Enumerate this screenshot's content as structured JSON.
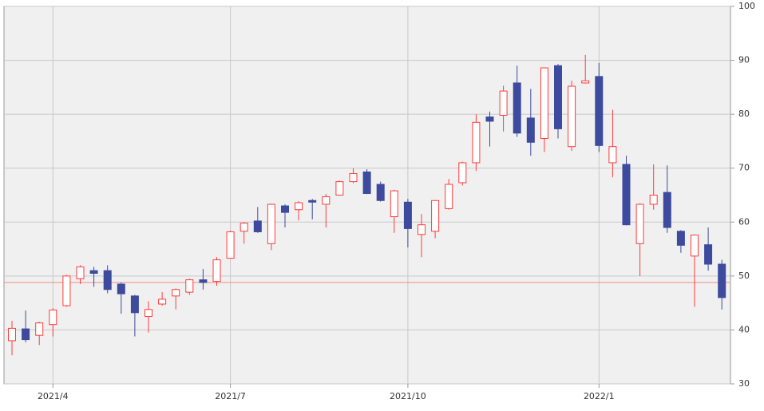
{
  "chart_data": {
    "type": "candlestick",
    "categories": [
      null,
      null,
      null,
      "2021/4",
      null,
      null,
      null,
      null,
      null,
      null,
      null,
      null,
      null,
      null,
      null,
      null,
      "2021/7",
      null,
      null,
      null,
      null,
      null,
      null,
      null,
      null,
      null,
      null,
      null,
      null,
      "2021/10",
      null,
      null,
      null,
      null,
      null,
      null,
      null,
      null,
      null,
      null,
      null,
      null,
      null,
      "2022/1",
      null,
      null,
      null,
      null,
      null,
      null,
      null,
      null,
      null
    ],
    "open": [
      38,
      40.2,
      39,
      41,
      44.5,
      49.5,
      51,
      51,
      48.5,
      46.3,
      42.5,
      44.8,
      46.3,
      47,
      49.3,
      49,
      53.3,
      58.3,
      60.2,
      56,
      63,
      62.3,
      64,
      63.3,
      65,
      67.5,
      69.3,
      67,
      61,
      63.7,
      57.7,
      58.3,
      62.5,
      67.3,
      71,
      79.5,
      79.8,
      85.8,
      79.3,
      75.5,
      89,
      74,
      85.8,
      87,
      71,
      70.7,
      56,
      63.3,
      65.5,
      58.3,
      53.7,
      55.8,
      52.2
    ],
    "high": [
      41.7,
      43.6,
      41.5,
      44,
      50.2,
      52,
      51.7,
      52,
      48.8,
      46.5,
      45.3,
      47,
      47.7,
      49.5,
      51.3,
      53.5,
      58.4,
      60,
      62.8,
      63.4,
      63.3,
      63.9,
      64.3,
      65.2,
      67.7,
      70,
      69.8,
      67.5,
      66,
      64.3,
      61.5,
      64,
      68,
      71.2,
      80,
      80.5,
      85.3,
      89,
      84.7,
      88.7,
      89.3,
      86.2,
      91,
      89.5,
      80.8,
      72.3,
      63.5,
      70.7,
      70.5,
      58.5,
      57.7,
      59,
      53
    ],
    "low": [
      35.3,
      37.7,
      37.2,
      38.8,
      44.3,
      48.5,
      48,
      46.8,
      43,
      38.8,
      39.5,
      44.5,
      43.8,
      46.5,
      47.5,
      48.2,
      53.3,
      56,
      58,
      54.8,
      59,
      60.3,
      60.5,
      59,
      65,
      67.2,
      65.2,
      63.8,
      58,
      55.3,
      53.5,
      57,
      62.3,
      66.8,
      69.5,
      74,
      76.8,
      75.8,
      72.3,
      73,
      75.5,
      73.2,
      85.7,
      73,
      68.3,
      59.4,
      50,
      62.3,
      58,
      54.3,
      44.3,
      51,
      43.8
    ],
    "close": [
      40.3,
      38.2,
      41.3,
      43.7,
      50,
      51.7,
      50.5,
      47.5,
      46.7,
      43.2,
      43.8,
      45.7,
      47.5,
      49.3,
      48.8,
      53,
      58.2,
      59.8,
      58.2,
      63.3,
      61.8,
      63.6,
      63.7,
      64.7,
      67.5,
      69,
      65.3,
      64,
      65.8,
      58.8,
      59.5,
      64,
      67,
      71,
      78.5,
      78.7,
      84.3,
      76.5,
      74.8,
      88.6,
      77.3,
      85.2,
      86.2,
      74.2,
      74,
      59.5,
      63.3,
      65,
      59,
      55.7,
      57.6,
      52.2,
      46
    ],
    "up_color": "#ff3b3b",
    "down_color": "#3d4a9e",
    "reference_line": 48.8,
    "reference_color": "#f08a8a",
    "ylim": [
      30,
      100
    ],
    "yticks": [
      30,
      40,
      50,
      60,
      70,
      80,
      90,
      100
    ],
    "grid": true
  }
}
